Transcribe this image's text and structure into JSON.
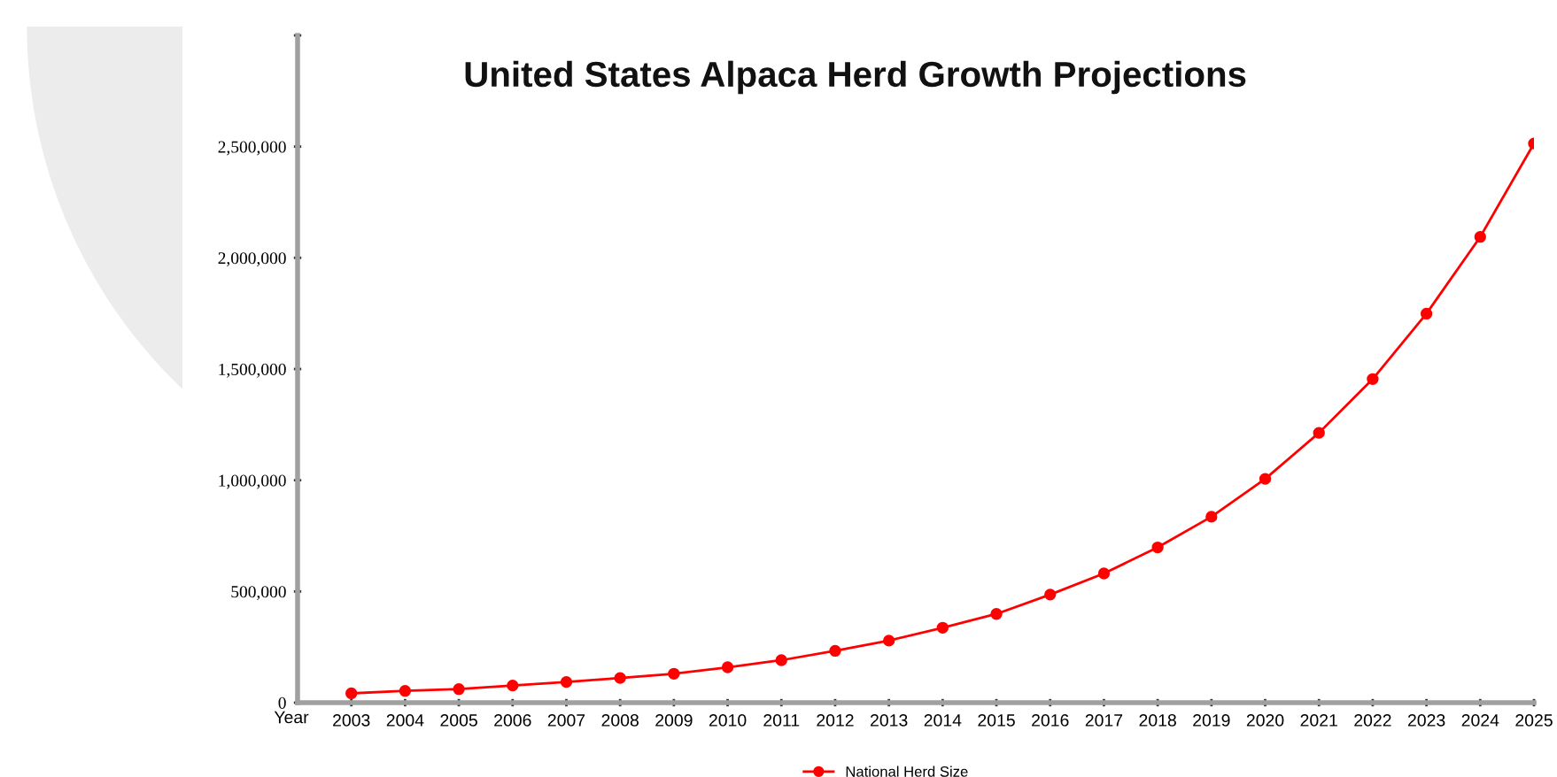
{
  "chart_data": {
    "type": "line",
    "title": "United States Alpaca Herd Growth Projections",
    "xlabel": "Year",
    "x": [
      2003,
      2004,
      2005,
      2006,
      2007,
      2008,
      2009,
      2010,
      2011,
      2012,
      2013,
      2014,
      2015,
      2016,
      2017,
      2018,
      2019,
      2020,
      2021,
      2022,
      2023,
      2024,
      2025
    ],
    "series": [
      {
        "name": "National Herd Size",
        "color": "#ff0000",
        "values": [
          42000,
          53000,
          61000,
          77000,
          93000,
          111000,
          130000,
          159000,
          191000,
          233000,
          279000,
          337000,
          399000,
          486000,
          581000,
          698000,
          836000,
          1006000,
          1213000,
          1455000,
          1749000,
          2094000,
          2514000
        ]
      }
    ],
    "xlim": [
      2002,
      2025
    ],
    "xticks": [
      2003,
      2004,
      2005,
      2006,
      2007,
      2008,
      2009,
      2010,
      2011,
      2012,
      2013,
      2014,
      2015,
      2016,
      2017,
      2018,
      2019,
      2020,
      2021,
      2022,
      2023,
      2024,
      2025
    ],
    "ylim": [
      0,
      3000000
    ],
    "yticks": [
      0,
      {
        "value": 500000,
        "label": "500,000"
      },
      {
        "value": 1000000,
        "label": "1,000,000"
      },
      {
        "value": 1500000,
        "label": "1,500,000"
      },
      {
        "value": 2000000,
        "label": "2,000,000"
      },
      {
        "value": 2500000,
        "label": "2,500,000"
      },
      {
        "value": 3000000,
        "label": null
      }
    ],
    "marker": "circle",
    "line_style": "solid",
    "legend": "bottom"
  }
}
